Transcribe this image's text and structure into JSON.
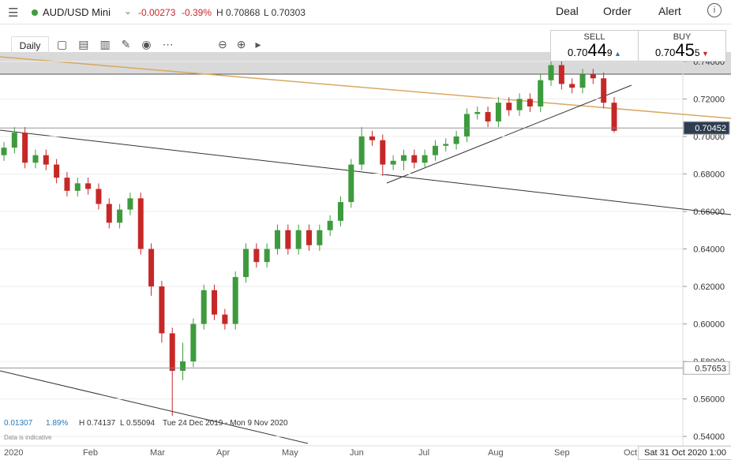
{
  "header": {
    "instrument": "AUD/USD Mini",
    "change": "-0.00273",
    "change_pct": "-0.39%",
    "high": "H 0.70868",
    "low": "L 0.70303",
    "menu": [
      "Deal",
      "Order",
      "Alert"
    ]
  },
  "toolbar": {
    "interval": "Daily"
  },
  "quote": {
    "sell": {
      "label": "SELL",
      "prefix": "0.70",
      "big": "44",
      "small": "9"
    },
    "buy": {
      "label": "BUY",
      "prefix": "0.70",
      "big": "45",
      "small": "5"
    }
  },
  "status": {
    "change": "0.01307",
    "change_pct": "1.89%",
    "high": "H 0.74137",
    "low": "L 0.55094",
    "range": "Tue 24 Dec 2019 - Mon 9 Nov 2020",
    "note": "Data is indicative",
    "cursor_date": "Sat 31 Oct 2020 1:00"
  },
  "chart_data": {
    "type": "candlestick",
    "x_labels": [
      "2020",
      "Feb",
      "Mar",
      "Apr",
      "May",
      "Jun",
      "Jul",
      "Aug",
      "Sep",
      "Oct"
    ],
    "open": [
      0.69,
      0.694,
      0.702,
      0.686,
      0.69,
      0.685,
      0.678,
      0.671,
      0.675,
      0.672,
      0.664,
      0.654,
      0.661,
      0.667,
      0.64,
      0.62,
      0.595,
      0.575,
      0.58,
      0.6,
      0.618,
      0.605,
      0.6,
      0.625,
      0.64,
      0.633,
      0.64,
      0.65,
      0.64,
      0.65,
      0.642,
      0.65,
      0.655,
      0.665,
      0.685,
      0.7,
      0.698,
      0.685,
      0.687,
      0.69,
      0.686,
      0.69,
      0.695,
      0.696,
      0.7,
      0.712,
      0.713,
      0.708,
      0.718,
      0.714,
      0.72,
      0.716,
      0.73,
      0.738,
      0.728,
      0.726,
      0.733,
      0.731,
      0.718
    ],
    "high": [
      0.697,
      0.705,
      0.705,
      0.693,
      0.693,
      0.688,
      0.681,
      0.678,
      0.678,
      0.675,
      0.667,
      0.664,
      0.67,
      0.67,
      0.643,
      0.623,
      0.598,
      0.59,
      0.603,
      0.621,
      0.621,
      0.608,
      0.628,
      0.643,
      0.643,
      0.643,
      0.653,
      0.653,
      0.653,
      0.653,
      0.653,
      0.658,
      0.668,
      0.688,
      0.705,
      0.703,
      0.701,
      0.69,
      0.693,
      0.693,
      0.693,
      0.698,
      0.699,
      0.703,
      0.715,
      0.716,
      0.716,
      0.721,
      0.721,
      0.723,
      0.723,
      0.733,
      0.741,
      0.741,
      0.731,
      0.736,
      0.736,
      0.734,
      0.721
    ],
    "low": [
      0.687,
      0.691,
      0.683,
      0.683,
      0.682,
      0.675,
      0.668,
      0.668,
      0.669,
      0.661,
      0.651,
      0.651,
      0.658,
      0.637,
      0.615,
      0.59,
      0.551,
      0.57,
      0.577,
      0.597,
      0.602,
      0.597,
      0.597,
      0.622,
      0.63,
      0.63,
      0.637,
      0.637,
      0.637,
      0.639,
      0.639,
      0.647,
      0.652,
      0.662,
      0.682,
      0.695,
      0.679,
      0.682,
      0.682,
      0.683,
      0.683,
      0.687,
      0.692,
      0.693,
      0.697,
      0.709,
      0.705,
      0.705,
      0.711,
      0.711,
      0.713,
      0.713,
      0.727,
      0.725,
      0.723,
      0.723,
      0.728,
      0.715,
      0.702
    ],
    "close": [
      0.694,
      0.702,
      0.686,
      0.69,
      0.685,
      0.678,
      0.671,
      0.675,
      0.672,
      0.664,
      0.654,
      0.661,
      0.667,
      0.64,
      0.62,
      0.595,
      0.575,
      0.58,
      0.6,
      0.618,
      0.605,
      0.6,
      0.625,
      0.64,
      0.633,
      0.64,
      0.65,
      0.64,
      0.65,
      0.642,
      0.65,
      0.655,
      0.665,
      0.685,
      0.7,
      0.698,
      0.685,
      0.687,
      0.69,
      0.686,
      0.69,
      0.695,
      0.696,
      0.7,
      0.712,
      0.713,
      0.708,
      0.718,
      0.714,
      0.72,
      0.716,
      0.73,
      0.738,
      0.728,
      0.726,
      0.733,
      0.731,
      0.718,
      0.703
    ],
    "up_color": "#3d9b3d",
    "down_color": "#c62828",
    "ylim": [
      0.535,
      0.745
    ],
    "yticks": [
      {
        "value": 0.74,
        "label": "0.74000"
      },
      {
        "value": 0.72,
        "label": "0.72000"
      },
      {
        "value": 0.7,
        "label": "0.70000"
      },
      {
        "value": 0.68,
        "label": "0.68000"
      },
      {
        "value": 0.66,
        "label": "0.66000"
      },
      {
        "value": 0.64,
        "label": "0.64000"
      },
      {
        "value": 0.62,
        "label": "0.62000"
      },
      {
        "value": 0.6,
        "label": "0.60000"
      },
      {
        "value": 0.58,
        "label": "0.58000"
      },
      {
        "value": 0.56,
        "label": "0.56000"
      },
      {
        "value": 0.54,
        "label": "0.54000"
      }
    ],
    "price_lines": [
      {
        "value": 0.70452,
        "color": "#2e3d4f"
      },
      {
        "value": 0.57653,
        "color": "#ffffff"
      }
    ]
  }
}
